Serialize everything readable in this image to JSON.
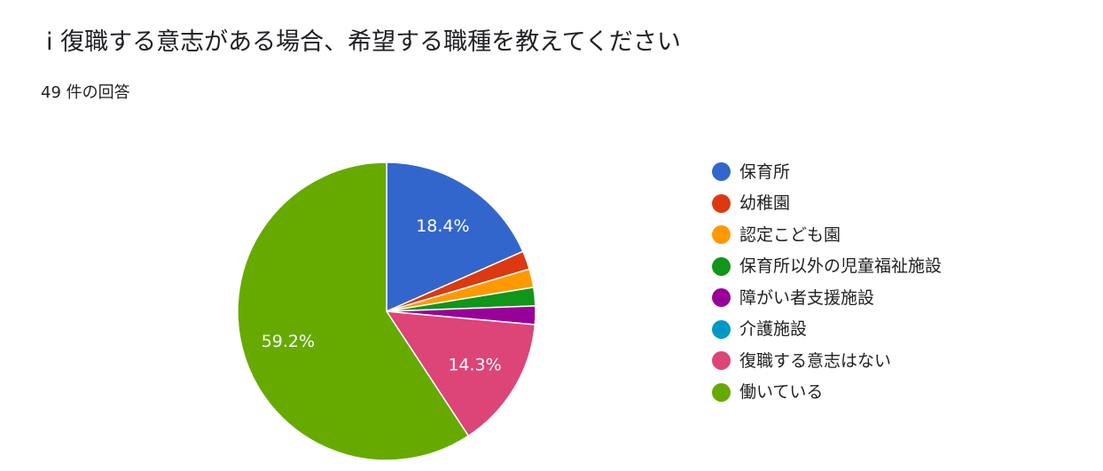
{
  "header": {
    "title": "i 復職する意志がある場合、希望する職種を教えてください",
    "response_count": "49 件の回答"
  },
  "chart_data": {
    "type": "pie",
    "title": "i 復職する意志がある場合、希望する職種を教えてください",
    "legend_position": "right",
    "start_angle_deg": 90,
    "direction": "clockwise",
    "slices": [
      {
        "label": "保育所",
        "percent": 18.4,
        "color": "#3366cc",
        "value_label": "18.4%"
      },
      {
        "label": "幼稚園",
        "percent": 2.0,
        "color": "#dc3912",
        "value_label": ""
      },
      {
        "label": "認定こども園",
        "percent": 2.0,
        "color": "#ff9900",
        "value_label": ""
      },
      {
        "label": "保育所以外の児童福祉施設",
        "percent": 2.0,
        "color": "#109618",
        "value_label": ""
      },
      {
        "label": "障がい者支援施設",
        "percent": 2.0,
        "color": "#990099",
        "value_label": ""
      },
      {
        "label": "介護施設",
        "percent": 0.0,
        "color": "#0099c6",
        "value_label": ""
      },
      {
        "label": "復職する意志はない",
        "percent": 14.3,
        "color": "#dd4477",
        "value_label": "14.3%"
      },
      {
        "label": "働いている",
        "percent": 59.2,
        "color": "#66aa00",
        "value_label": "59.2%"
      }
    ]
  }
}
